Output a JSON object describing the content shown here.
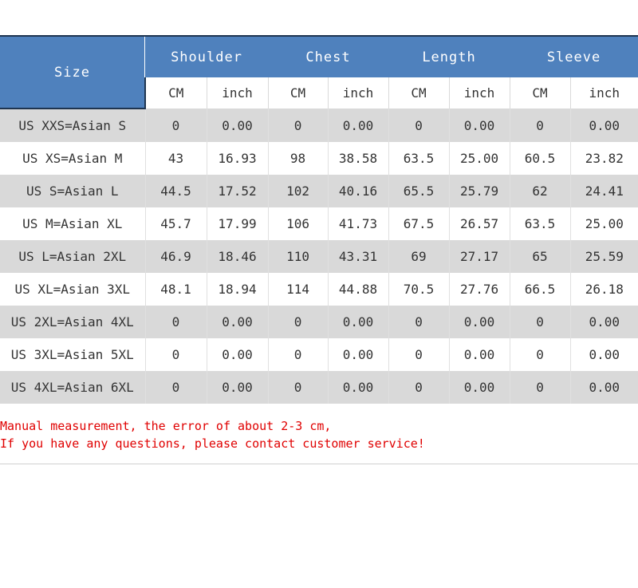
{
  "header": {
    "size": "Size",
    "groups": [
      "Shoulder",
      "Chest",
      "Length",
      "Sleeve"
    ],
    "units": [
      "CM",
      "inch",
      "CM",
      "inch",
      "CM",
      "inch",
      "CM",
      "inch"
    ]
  },
  "rows": [
    {
      "size": "US XXS=Asian S",
      "values": [
        "0",
        "0.00",
        "0",
        "0.00",
        "0",
        "0.00",
        "0",
        "0.00"
      ]
    },
    {
      "size": "US XS=Asian M",
      "values": [
        "43",
        "16.93",
        "98",
        "38.58",
        "63.5",
        "25.00",
        "60.5",
        "23.82"
      ]
    },
    {
      "size": "US S=Asian L",
      "values": [
        "44.5",
        "17.52",
        "102",
        "40.16",
        "65.5",
        "25.79",
        "62",
        "24.41"
      ]
    },
    {
      "size": "US M=Asian XL",
      "values": [
        "45.7",
        "17.99",
        "106",
        "41.73",
        "67.5",
        "26.57",
        "63.5",
        "25.00"
      ]
    },
    {
      "size": "US L=Asian 2XL",
      "values": [
        "46.9",
        "18.46",
        "110",
        "43.31",
        "69",
        "27.17",
        "65",
        "25.59"
      ]
    },
    {
      "size": "US XL=Asian 3XL",
      "values": [
        "48.1",
        "18.94",
        "114",
        "44.88",
        "70.5",
        "27.76",
        "66.5",
        "26.18"
      ]
    },
    {
      "size": "US 2XL=Asian 4XL",
      "values": [
        "0",
        "0.00",
        "0",
        "0.00",
        "0",
        "0.00",
        "0",
        "0.00"
      ]
    },
    {
      "size": "US 3XL=Asian 5XL",
      "values": [
        "0",
        "0.00",
        "0",
        "0.00",
        "0",
        "0.00",
        "0",
        "0.00"
      ]
    },
    {
      "size": "US 4XL=Asian 6XL",
      "values": [
        "0",
        "0.00",
        "0",
        "0.00",
        "0",
        "0.00",
        "0",
        "0.00"
      ]
    }
  ],
  "notes": [
    "Manual measurement, the error of about 2-3 cm,",
    "If you have any questions, please contact customer service!"
  ],
  "colors": {
    "header_bg": "#4f81bd",
    "header_text": "#ffffff",
    "row_shade": "#d9d9d9",
    "note_text": "#e00000"
  }
}
